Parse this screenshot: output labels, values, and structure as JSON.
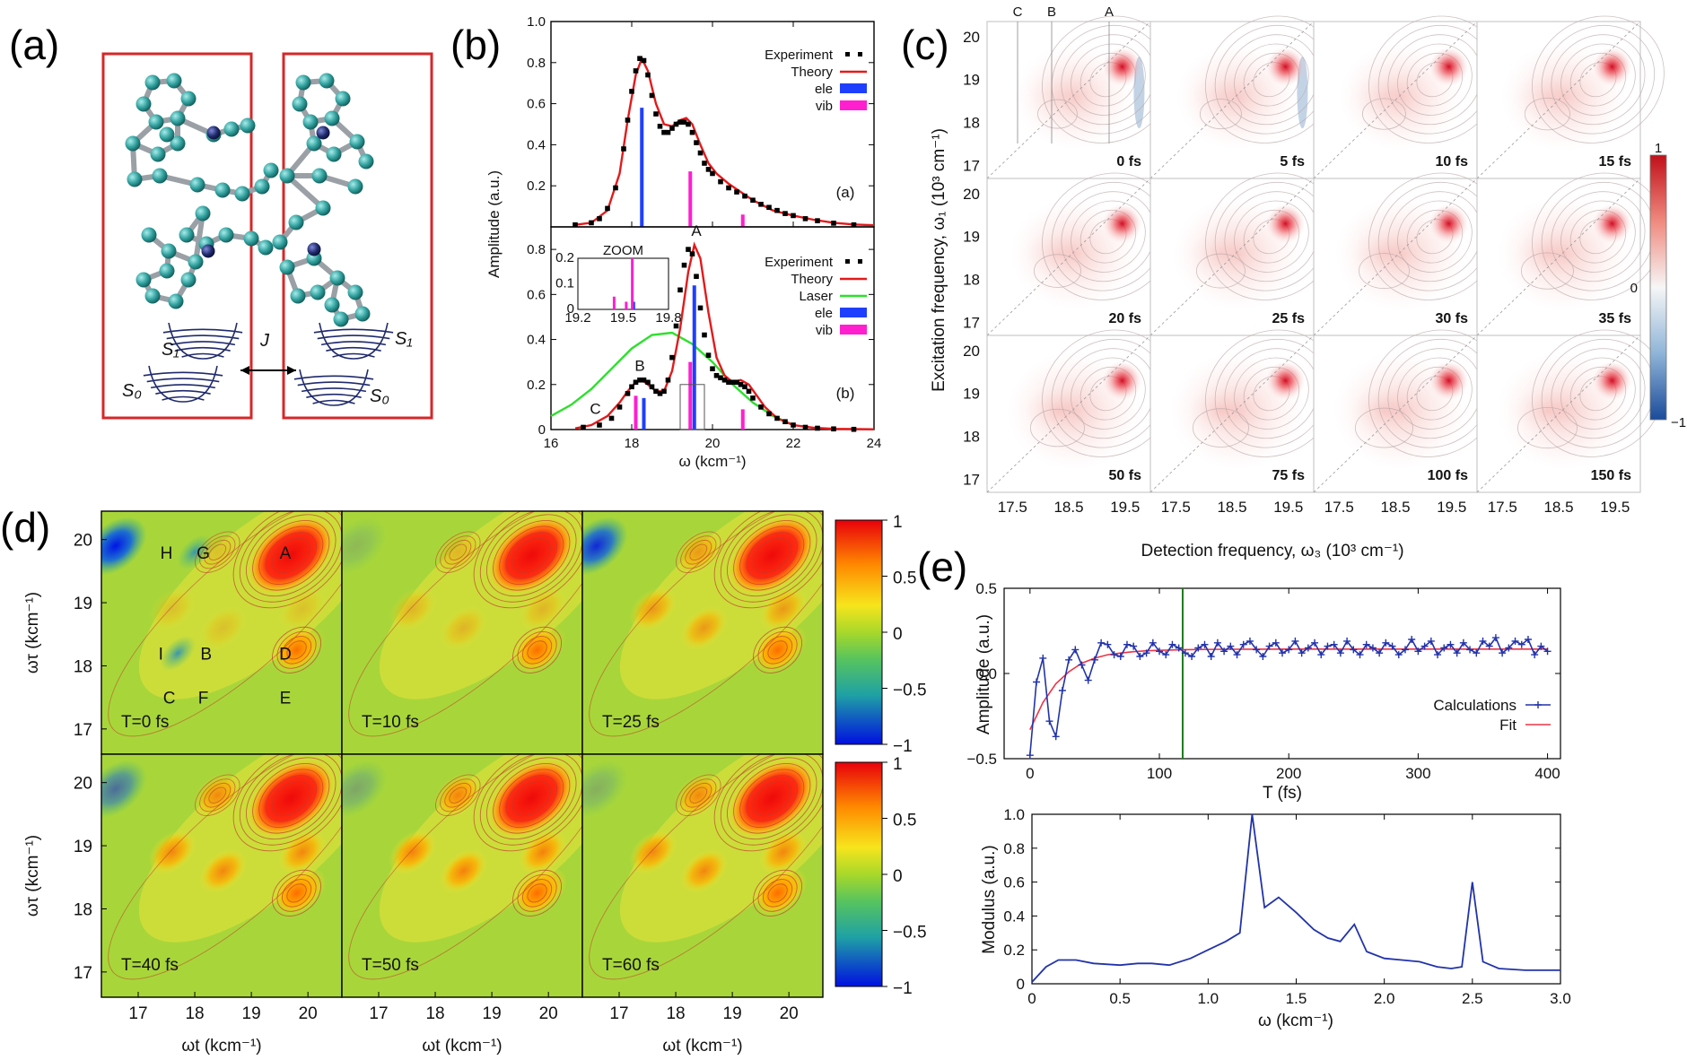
{
  "panel_labels": {
    "a": "(a)",
    "b": "(b)",
    "c": "(c)",
    "d": "(d)",
    "e": "(e)"
  },
  "panel_a": {
    "s1_left": "S₁",
    "s1_right": "S₁",
    "s0_left": "S₀",
    "s0_right": "S₀",
    "coupling": "J",
    "colors": {
      "frame": "#d62728",
      "carbon": "#35a39f",
      "nitrogen": "#1f2a6b",
      "bond": "#9aa0a6"
    }
  },
  "chart_data": [
    {
      "id": "b_top",
      "type": "line",
      "ylabel": "Amplitude (a.u.)",
      "tag": "(a)",
      "xlim": [
        16,
        24
      ],
      "ylim": [
        0,
        1.0
      ],
      "yticks": [
        "1.0",
        "0.8",
        "0.6",
        "0.4",
        "0.2"
      ],
      "yticks_val": [
        1.0,
        0.8,
        0.6,
        0.4,
        0.2
      ],
      "legend": [
        "Experiment",
        "Theory",
        "ele",
        "vib"
      ],
      "series": [
        {
          "name": "Experiment",
          "color": "#000000",
          "x": [
            16.6,
            17.0,
            17.2,
            17.4,
            17.6,
            17.8,
            17.9,
            18.0,
            18.1,
            18.2,
            18.3,
            18.4,
            18.5,
            18.6,
            18.7,
            18.8,
            18.9,
            19.0,
            19.1,
            19.2,
            19.3,
            19.4,
            19.5,
            19.6,
            19.7,
            19.8,
            19.9,
            20.0,
            20.2,
            20.4,
            20.6,
            20.8,
            21.0,
            21.2,
            21.4,
            21.6,
            21.8,
            22.0,
            22.3,
            22.6,
            23.0,
            23.5
          ],
          "y": [
            0.01,
            0.02,
            0.04,
            0.09,
            0.19,
            0.38,
            0.52,
            0.66,
            0.76,
            0.82,
            0.81,
            0.74,
            0.64,
            0.55,
            0.49,
            0.46,
            0.46,
            0.48,
            0.5,
            0.51,
            0.51,
            0.5,
            0.46,
            0.41,
            0.36,
            0.31,
            0.28,
            0.26,
            0.22,
            0.19,
            0.17,
            0.15,
            0.13,
            0.11,
            0.095,
            0.08,
            0.065,
            0.055,
            0.04,
            0.03,
            0.018,
            0.01
          ]
        },
        {
          "name": "Theory",
          "color": "#e31a1c",
          "x": [
            16.6,
            17.0,
            17.4,
            17.7,
            17.9,
            18.1,
            18.25,
            18.4,
            18.6,
            18.8,
            19.0,
            19.2,
            19.35,
            19.5,
            19.7,
            19.9,
            20.1,
            20.4,
            20.7,
            21.0,
            21.5,
            22.0,
            22.5,
            23.0,
            23.5,
            24.0
          ],
          "y": [
            0.01,
            0.02,
            0.08,
            0.26,
            0.52,
            0.74,
            0.82,
            0.76,
            0.6,
            0.5,
            0.49,
            0.52,
            0.53,
            0.5,
            0.4,
            0.31,
            0.26,
            0.21,
            0.17,
            0.13,
            0.08,
            0.055,
            0.035,
            0.02,
            0.012,
            0.008
          ]
        }
      ],
      "sticks": [
        {
          "name": "ele",
          "color": "#1f3fff",
          "x": [
            18.25
          ],
          "y": [
            0.58
          ]
        },
        {
          "name": "vib",
          "color": "#ff1fcf",
          "x": [
            19.45,
            20.75
          ],
          "y": [
            0.27,
            0.06
          ]
        }
      ]
    },
    {
      "id": "b_bottom",
      "type": "line",
      "xlabel": "ω (kcm⁻¹)",
      "tag": "(b)",
      "xlim": [
        16,
        24
      ],
      "ylim": [
        0,
        0.9
      ],
      "xticks": [
        16,
        18,
        20,
        22,
        24
      ],
      "yticks_val": [
        0,
        0.2,
        0.4,
        0.6,
        0.8
      ],
      "yticks": [
        "0",
        "0.2",
        "0.4",
        "0.6",
        "0.8"
      ],
      "legend": [
        "Experiment",
        "Theory",
        "Laser",
        "ele",
        "vib"
      ],
      "peak_labels": [
        "A",
        "B",
        "C"
      ],
      "series": [
        {
          "name": "Experiment",
          "color": "#000000",
          "x": [
            16.8,
            17.2,
            17.5,
            17.7,
            17.9,
            18.0,
            18.1,
            18.2,
            18.3,
            18.4,
            18.5,
            18.6,
            18.7,
            18.8,
            18.9,
            19.0,
            19.1,
            19.2,
            19.3,
            19.4,
            19.5,
            19.6,
            19.7,
            19.8,
            19.9,
            20.0,
            20.1,
            20.2,
            20.3,
            20.4,
            20.5,
            20.6,
            20.7,
            20.8,
            20.9,
            21.0,
            21.2,
            21.4,
            21.6,
            21.8,
            22.0,
            22.3,
            22.6,
            23.0,
            23.5
          ],
          "y": [
            0.01,
            0.02,
            0.05,
            0.1,
            0.16,
            0.19,
            0.21,
            0.22,
            0.22,
            0.21,
            0.19,
            0.17,
            0.16,
            0.17,
            0.22,
            0.32,
            0.46,
            0.62,
            0.73,
            0.8,
            0.78,
            0.68,
            0.54,
            0.42,
            0.33,
            0.27,
            0.24,
            0.23,
            0.22,
            0.21,
            0.21,
            0.21,
            0.2,
            0.19,
            0.17,
            0.14,
            0.1,
            0.07,
            0.05,
            0.035,
            0.02,
            0.01,
            0.006,
            0.003,
            0.001
          ]
        },
        {
          "name": "Theory",
          "color": "#e31a1c",
          "x": [
            16.6,
            17.0,
            17.4,
            17.7,
            17.9,
            18.1,
            18.25,
            18.4,
            18.6,
            18.8,
            19.0,
            19.2,
            19.4,
            19.55,
            19.7,
            19.9,
            20.1,
            20.3,
            20.5,
            20.7,
            20.9,
            21.1,
            21.3,
            21.6,
            22.0,
            22.5,
            23.0,
            24.0
          ],
          "y": [
            0.005,
            0.02,
            0.06,
            0.12,
            0.17,
            0.21,
            0.22,
            0.2,
            0.17,
            0.17,
            0.26,
            0.45,
            0.7,
            0.82,
            0.76,
            0.52,
            0.32,
            0.24,
            0.21,
            0.22,
            0.2,
            0.15,
            0.1,
            0.05,
            0.02,
            0.008,
            0.003,
            0.001
          ]
        },
        {
          "name": "Laser",
          "color": "#2de02d",
          "x": [
            16.0,
            16.5,
            17.0,
            17.5,
            18.0,
            18.5,
            19.0,
            19.5,
            20.0,
            20.5,
            21.0,
            21.5,
            22.0
          ],
          "y": [
            0.06,
            0.11,
            0.18,
            0.27,
            0.36,
            0.42,
            0.43,
            0.38,
            0.3,
            0.2,
            0.12,
            0.06,
            0.02
          ]
        }
      ],
      "sticks": [
        {
          "name": "ele",
          "color": "#1f3fff",
          "x": [
            18.3,
            19.55
          ],
          "y": [
            0.14,
            0.64
          ]
        },
        {
          "name": "vib",
          "color": "#ff1fcf",
          "x": [
            18.1,
            19.45,
            20.75
          ],
          "y": [
            0.15,
            0.3,
            0.09
          ]
        }
      ],
      "inset": {
        "title": "ZOOM",
        "xlim": [
          19.2,
          19.8
        ],
        "ylim": [
          0,
          0.2
        ],
        "xticks": [
          "19.2",
          "19.5",
          "19.8"
        ],
        "yticks": [
          "0",
          "0.1",
          "0.2"
        ],
        "sticks": [
          {
            "name": "ele",
            "color": "#1f3fff",
            "x": [
              19.57
            ],
            "y": [
              0.03
            ]
          },
          {
            "name": "vib",
            "color": "#ff1fcf",
            "x": [
              19.44,
              19.52,
              19.56
            ],
            "y": [
              0.05,
              0.03,
              0.22
            ]
          }
        ]
      }
    },
    {
      "id": "c_grid",
      "type": "heatmap",
      "xlabel": "Detection frequency, ω₃ (10³ cm⁻¹)",
      "ylabel": "Excitation frequency, ω₁ (10³ cm⁻¹)",
      "xticks": [
        "17.5",
        "18.5",
        "19.5"
      ],
      "yticks": [
        "20",
        "19",
        "18",
        "17"
      ],
      "times": [
        "0 fs",
        "5 fs",
        "10 fs",
        "15 fs",
        "20 fs",
        "25 fs",
        "30 fs",
        "35 fs",
        "50 fs",
        "75 fs",
        "100 fs",
        "150 fs"
      ],
      "top_markers": [
        "C",
        "B",
        "A"
      ],
      "colorbar": {
        "max": "1",
        "mid": "0",
        "min": "−1"
      }
    },
    {
      "id": "d_grid",
      "type": "heatmap",
      "xlabel": "ωt (kcm⁻¹)",
      "ylabel": "ωτ (kcm⁻¹)",
      "xticks": [
        "17",
        "18",
        "19",
        "20"
      ],
      "yticks": [
        "20",
        "19",
        "18",
        "17"
      ],
      "times": [
        "T=0 fs",
        "T=10 fs",
        "T=25 fs",
        "T=40 fs",
        "T=50 fs",
        "T=60 fs"
      ],
      "peak_labels": [
        "H",
        "G",
        "A",
        "I",
        "B",
        "D",
        "C",
        "F",
        "E"
      ],
      "colorbar_ticks": [
        "1",
        "0.5",
        "0",
        "−0.5",
        "−1"
      ]
    },
    {
      "id": "e_top",
      "type": "line",
      "xlabel": "T (fs)",
      "ylabel": "Amplitude (a.u.)",
      "xlim": [
        -20,
        410
      ],
      "ylim": [
        -0.5,
        0.5
      ],
      "xticks": [
        0,
        100,
        200,
        300,
        400
      ],
      "yticks": [
        0.5,
        0.0,
        -0.5
      ],
      "ytick_labels": [
        "0.5",
        "0.0",
        "−0.5"
      ],
      "vline_x": 118,
      "legend": [
        "Calculations",
        "Fit"
      ],
      "series": [
        {
          "name": "Calculations",
          "color": "#2233aa",
          "x": [
            0,
            5,
            10,
            15,
            20,
            25,
            30,
            35,
            40,
            45,
            50,
            55,
            60,
            65,
            70,
            75,
            80,
            85,
            90,
            95,
            100,
            105,
            110,
            115,
            120,
            125,
            130,
            135,
            140,
            145,
            150,
            155,
            160,
            165,
            170,
            175,
            180,
            185,
            190,
            195,
            200,
            205,
            210,
            215,
            220,
            225,
            230,
            235,
            240,
            245,
            250,
            255,
            260,
            265,
            270,
            275,
            280,
            285,
            290,
            295,
            300,
            305,
            310,
            315,
            320,
            325,
            330,
            335,
            340,
            345,
            350,
            355,
            360,
            365,
            370,
            375,
            380,
            385,
            390,
            395,
            400
          ],
          "y": [
            -0.48,
            -0.05,
            0.09,
            -0.28,
            -0.37,
            -0.1,
            0.08,
            0.14,
            0.05,
            -0.04,
            0.08,
            0.18,
            0.17,
            0.11,
            0.1,
            0.17,
            0.16,
            0.1,
            0.12,
            0.18,
            0.13,
            0.11,
            0.17,
            0.15,
            0.12,
            0.1,
            0.15,
            0.17,
            0.1,
            0.18,
            0.13,
            0.16,
            0.11,
            0.17,
            0.19,
            0.14,
            0.1,
            0.16,
            0.18,
            0.12,
            0.14,
            0.19,
            0.12,
            0.15,
            0.18,
            0.11,
            0.16,
            0.17,
            0.12,
            0.19,
            0.14,
            0.11,
            0.17,
            0.15,
            0.12,
            0.18,
            0.16,
            0.11,
            0.14,
            0.2,
            0.13,
            0.16,
            0.19,
            0.11,
            0.15,
            0.17,
            0.12,
            0.18,
            0.14,
            0.12,
            0.19,
            0.16,
            0.21,
            0.12,
            0.15,
            0.19,
            0.17,
            0.2,
            0.11,
            0.16,
            0.13
          ]
        },
        {
          "name": "Fit",
          "color": "#ee3344",
          "x": [
            0,
            10,
            20,
            30,
            40,
            50,
            60,
            70,
            80,
            90,
            100,
            120,
            150,
            200,
            300,
            400
          ],
          "y": [
            -0.33,
            -0.17,
            -0.06,
            0.01,
            0.06,
            0.09,
            0.11,
            0.12,
            0.128,
            0.133,
            0.136,
            0.14,
            0.142,
            0.143,
            0.143,
            0.143
          ]
        }
      ]
    },
    {
      "id": "e_bottom",
      "type": "line",
      "xlabel": "ω (kcm⁻¹)",
      "ylabel": "Modulus (a.u.)",
      "xlim": [
        0,
        3.0
      ],
      "ylim": [
        0,
        1.0
      ],
      "xticks": [
        0,
        0.5,
        1.0,
        1.5,
        2.0,
        2.5,
        3.0
      ],
      "xtick_labels": [
        "0",
        "0.5",
        "1.0",
        "1.5",
        "2.0",
        "2.5",
        "3.0"
      ],
      "yticks": [
        0,
        0.2,
        0.4,
        0.6,
        0.8,
        1.0
      ],
      "ytick_labels": [
        "0",
        "0.2",
        "0.4",
        "0.6",
        "0.8",
        "1.0"
      ],
      "series": [
        {
          "name": "Modulus",
          "color": "#2233aa",
          "x": [
            0,
            0.08,
            0.15,
            0.25,
            0.35,
            0.5,
            0.6,
            0.68,
            0.78,
            0.9,
            1.0,
            1.1,
            1.18,
            1.25,
            1.32,
            1.4,
            1.5,
            1.6,
            1.68,
            1.75,
            1.83,
            1.9,
            2.0,
            2.1,
            2.2,
            2.3,
            2.38,
            2.44,
            2.5,
            2.56,
            2.65,
            2.8,
            3.0
          ],
          "y": [
            0.01,
            0.1,
            0.14,
            0.14,
            0.12,
            0.11,
            0.12,
            0.12,
            0.11,
            0.15,
            0.2,
            0.25,
            0.3,
            1.0,
            0.45,
            0.51,
            0.42,
            0.32,
            0.27,
            0.25,
            0.35,
            0.19,
            0.15,
            0.14,
            0.13,
            0.1,
            0.09,
            0.1,
            0.6,
            0.13,
            0.09,
            0.08,
            0.08
          ]
        }
      ]
    }
  ]
}
